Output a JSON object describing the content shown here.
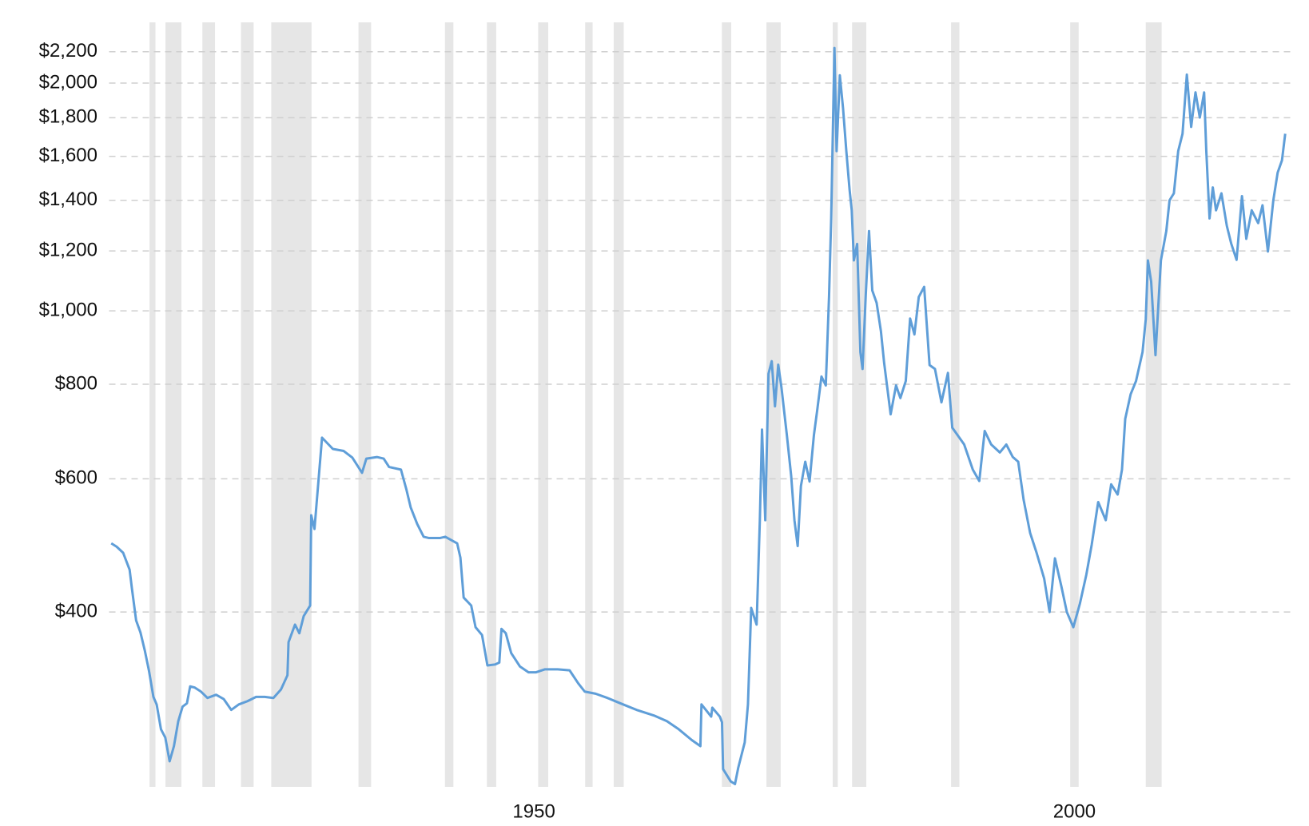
{
  "chart_data": {
    "type": "line",
    "log_scale_y": true,
    "grid": true,
    "color": "#5f9ed8",
    "band_color": "#e6e6e6",
    "xlim": [
      1910.7,
      2020
    ],
    "xticks": [
      1950,
      2000
    ],
    "ylim": [
      235,
      2260
    ],
    "yticks": [
      {
        "value": 400,
        "label": "$400"
      },
      {
        "value": 600,
        "label": "$600"
      },
      {
        "value": 800,
        "label": "$800"
      },
      {
        "value": 1000,
        "label": "$1,000"
      },
      {
        "value": 1200,
        "label": "$1,200"
      },
      {
        "value": 1400,
        "label": "$1,400"
      },
      {
        "value": 1600,
        "label": "$1,600"
      },
      {
        "value": 1800,
        "label": "$1,800"
      },
      {
        "value": 2000,
        "label": "$2,000"
      },
      {
        "value": 2200,
        "label": "$2,200"
      }
    ],
    "recessions": [
      [
        1914.44,
        1914.99
      ],
      [
        1915.92,
        1917.39
      ],
      [
        1919.33,
        1920.5
      ],
      [
        1922.9,
        1924.07
      ],
      [
        1925.7,
        1929.43
      ],
      [
        1933.77,
        1934.94
      ],
      [
        1941.77,
        1942.55
      ],
      [
        1945.65,
        1946.51
      ],
      [
        1950.39,
        1951.32
      ],
      [
        1954.74,
        1955.43
      ],
      [
        1957.38,
        1958.31
      ],
      [
        1967.39,
        1968.25
      ],
      [
        1971.51,
        1972.83
      ],
      [
        1977.64,
        1978.11
      ],
      [
        1979.43,
        1980.75
      ],
      [
        1988.59,
        1989.36
      ],
      [
        1999.61,
        2000.39
      ],
      [
        2006.6,
        2008.07
      ]
    ],
    "x": [
      1910.9,
      1911.4,
      1912.0,
      1912.6,
      1912.8,
      1913.2,
      1913.6,
      1914.0,
      1914.4,
      1914.8,
      1915.1,
      1915.5,
      1915.9,
      1916.3,
      1916.7,
      1917.1,
      1917.5,
      1917.9,
      1918.2,
      1918.6,
      1919.2,
      1919.8,
      1920.6,
      1921.3,
      1922.0,
      1922.7,
      1923.5,
      1924.3,
      1925.1,
      1925.9,
      1926.6,
      1927.2,
      1927.3,
      1927.9,
      1928.3,
      1928.7,
      1929.3,
      1929.4,
      1929.7,
      1930.4,
      1931.4,
      1932.4,
      1933.2,
      1934.1,
      1934.5,
      1935.5,
      1936.1,
      1936.6,
      1937.7,
      1938.2,
      1938.6,
      1939.2,
      1939.8,
      1940.3,
      1941.3,
      1941.8,
      1942.9,
      1943.2,
      1943.5,
      1944.2,
      1944.6,
      1945.2,
      1945.7,
      1946.4,
      1946.8,
      1947.0,
      1947.4,
      1947.9,
      1948.7,
      1949.5,
      1950.2,
      1951.0,
      1952.2,
      1953.3,
      1954.1,
      1954.7,
      1955.7,
      1956.8,
      1958.0,
      1959.5,
      1961.1,
      1962.3,
      1963.4,
      1964.6,
      1965.4,
      1965.5,
      1966.4,
      1966.5,
      1967.2,
      1967.4,
      1967.5,
      1968.2,
      1968.6,
      1968.9,
      1969.5,
      1969.8,
      1970.1,
      1970.6,
      1970.9,
      1971.1,
      1971.4,
      1971.7,
      1972.0,
      1972.3,
      1972.6,
      1972.9,
      1973.4,
      1973.8,
      1974.1,
      1974.4,
      1974.7,
      1975.1,
      1975.5,
      1975.9,
      1976.2,
      1976.6,
      1977.0,
      1977.3,
      1977.5,
      1977.8,
      1978.0,
      1978.3,
      1978.6,
      1978.9,
      1979.2,
      1979.4,
      1979.6,
      1979.9,
      1980.2,
      1980.4,
      1980.7,
      1981.0,
      1981.3,
      1981.7,
      1982.1,
      1982.4,
      1983.0,
      1983.5,
      1983.9,
      1984.4,
      1984.8,
      1985.2,
      1985.6,
      1986.1,
      1986.6,
      1987.1,
      1987.7,
      1988.3,
      1988.7,
      1989.2,
      1989.8,
      1990.6,
      1991.2,
      1991.7,
      1992.3,
      1993.1,
      1993.7,
      1994.3,
      1994.8,
      1995.3,
      1995.9,
      1996.5,
      1997.2,
      1997.7,
      1998.2,
      1998.8,
      1999.3,
      1999.9,
      2000.5,
      2001.1,
      2001.6,
      2002.2,
      2002.9,
      2003.4,
      2004.0,
      2004.4,
      2004.7,
      2005.2,
      2005.7,
      2006.3,
      2006.6,
      2006.8,
      2007.1,
      2007.5,
      2008.0,
      2008.5,
      2008.8,
      2009.2,
      2009.6,
      2010.0,
      2010.4,
      2010.8,
      2011.2,
      2011.6,
      2012.0,
      2012.2,
      2012.5,
      2012.8,
      2013.1,
      2013.6,
      2014.1,
      2014.5,
      2015.0,
      2015.5,
      2015.9,
      2016.4,
      2017.0,
      2017.4,
      2017.9,
      2018.4,
      2018.8,
      2019.2,
      2019.5
    ],
    "values": [
      493,
      488,
      479,
      455,
      431,
      390,
      376,
      356,
      334,
      309,
      302,
      280,
      273,
      254,
      266,
      287,
      300,
      303,
      319,
      318,
      314,
      308,
      311,
      307,
      297,
      302,
      305,
      309,
      309,
      308,
      316,
      330,
      365,
      385,
      375,
      395,
      408,
      537,
      515,
      680,
      657,
      653,
      640,
      611,
      638,
      641,
      638,
      622,
      617,
      581,
      550,
      523,
      503,
      501,
      501,
      503,
      493,
      472,
      418,
      408,
      382,
      373,
      340,
      341,
      343,
      380,
      375,
      353,
      339,
      333,
      333,
      336,
      336,
      335,
      322,
      314,
      312,
      308,
      303,
      297,
      292,
      287,
      280,
      271,
      266,
      302,
      291,
      299,
      291,
      286,
      248,
      239,
      237,
      249,
      269,
      302,
      405,
      385,
      529,
      697,
      529,
      826,
      858,
      748,
      849,
      792,
      685,
      605,
      529,
      489,
      587,
      632,
      595,
      685,
      738,
      819,
      797,
      1044,
      1325,
      2225,
      1626,
      2048,
      1850,
      1626,
      1446,
      1358,
      1166,
      1226,
      882,
      838,
      1052,
      1275,
      1064,
      1025,
      940,
      853,
      730,
      797,
      767,
      808,
      977,
      931,
      1043,
      1076,
      848,
      838,
      757,
      828,
      701,
      685,
      666,
      617,
      596,
      694,
      666,
      650,
      666,
      641,
      632,
      563,
      509,
      479,
      443,
      400,
      471,
      432,
      400,
      382,
      410,
      448,
      491,
      559,
      529,
      590,
      572,
      617,
      720,
      776,
      808,
      882,
      975,
      1166,
      1093,
      874,
      1166,
      1275,
      1400,
      1430,
      1626,
      1714,
      2052,
      1750,
      1944,
      1801,
      1944,
      1626,
      1325,
      1456,
      1358,
      1430,
      1295,
      1228,
      1168,
      1418,
      1245,
      1358,
      1306,
      1379,
      1198,
      1400,
      1523,
      1581,
      1714
    ]
  }
}
